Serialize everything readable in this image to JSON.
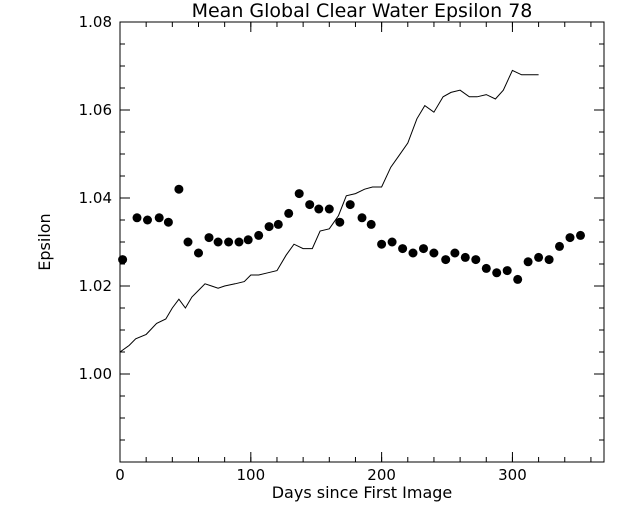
{
  "chart_data": {
    "type": "scatter",
    "title": "Mean Global Clear Water Epsilon 78",
    "xlabel": "Days since First Image",
    "ylabel": "Epsilon",
    "xlim": [
      0,
      370
    ],
    "ylim": [
      0.98,
      1.08
    ],
    "x_major_ticks": [
      0,
      100,
      200,
      300
    ],
    "x_tick_labels": [
      "0",
      "100",
      "200",
      "300"
    ],
    "x_minor_step": 20,
    "y_major_ticks": [
      1.0,
      1.02,
      1.04,
      1.06,
      1.08
    ],
    "y_tick_labels": [
      "1.00",
      "1.02",
      "1.04",
      "1.06",
      "1.08"
    ],
    "y_minor_step": 0.005,
    "grid": false,
    "series": [
      {
        "name": "points",
        "style": "markers",
        "x": [
          2,
          13,
          21,
          30,
          37,
          45,
          52,
          60,
          68,
          75,
          83,
          91,
          98,
          106,
          114,
          121,
          129,
          137,
          145,
          152,
          160,
          168,
          176,
          185,
          192,
          200,
          208,
          216,
          224,
          232,
          240,
          249,
          256,
          264,
          272,
          280,
          288,
          296,
          304,
          312,
          320,
          328,
          336,
          344,
          352
        ],
        "y": [
          1.026,
          1.0355,
          1.035,
          1.0355,
          1.0345,
          1.042,
          1.03,
          1.0275,
          1.031,
          1.03,
          1.03,
          1.03,
          1.0305,
          1.0315,
          1.0335,
          1.034,
          1.0365,
          1.041,
          1.0385,
          1.0375,
          1.0375,
          1.0345,
          1.0385,
          1.0355,
          1.034,
          1.0295,
          1.03,
          1.0285,
          1.0275,
          1.0285,
          1.0275,
          1.026,
          1.0275,
          1.0265,
          1.026,
          1.024,
          1.023,
          1.0235,
          1.0215,
          1.0255,
          1.0265,
          1.026,
          1.029,
          1.031,
          1.0315
        ]
      },
      {
        "name": "line",
        "style": "line",
        "x": [
          0,
          7,
          12,
          20,
          28,
          35,
          40,
          45,
          50,
          55,
          60,
          65,
          70,
          75,
          80,
          88,
          95,
          100,
          106,
          113,
          120,
          127,
          133,
          140,
          147,
          153,
          160,
          167,
          173,
          180,
          187,
          193,
          200,
          207,
          213,
          220,
          227,
          233,
          240,
          247,
          253,
          260,
          267,
          273,
          280,
          287,
          293,
          300,
          307,
          313,
          320
        ],
        "y": [
          1.005,
          1.0065,
          1.008,
          1.009,
          1.0115,
          1.0125,
          1.015,
          1.017,
          1.015,
          1.0175,
          1.019,
          1.0205,
          1.02,
          1.0195,
          1.02,
          1.0205,
          1.021,
          1.0225,
          1.0225,
          1.023,
          1.0235,
          1.027,
          1.0295,
          1.0285,
          1.0285,
          1.0325,
          1.033,
          1.036,
          1.0405,
          1.041,
          1.042,
          1.0425,
          1.0425,
          1.047,
          1.0495,
          1.0525,
          1.058,
          1.061,
          1.0595,
          1.063,
          1.064,
          1.0645,
          1.063,
          1.063,
          1.0635,
          1.0625,
          1.0645,
          1.069,
          1.068,
          1.068,
          1.068
        ]
      }
    ]
  }
}
